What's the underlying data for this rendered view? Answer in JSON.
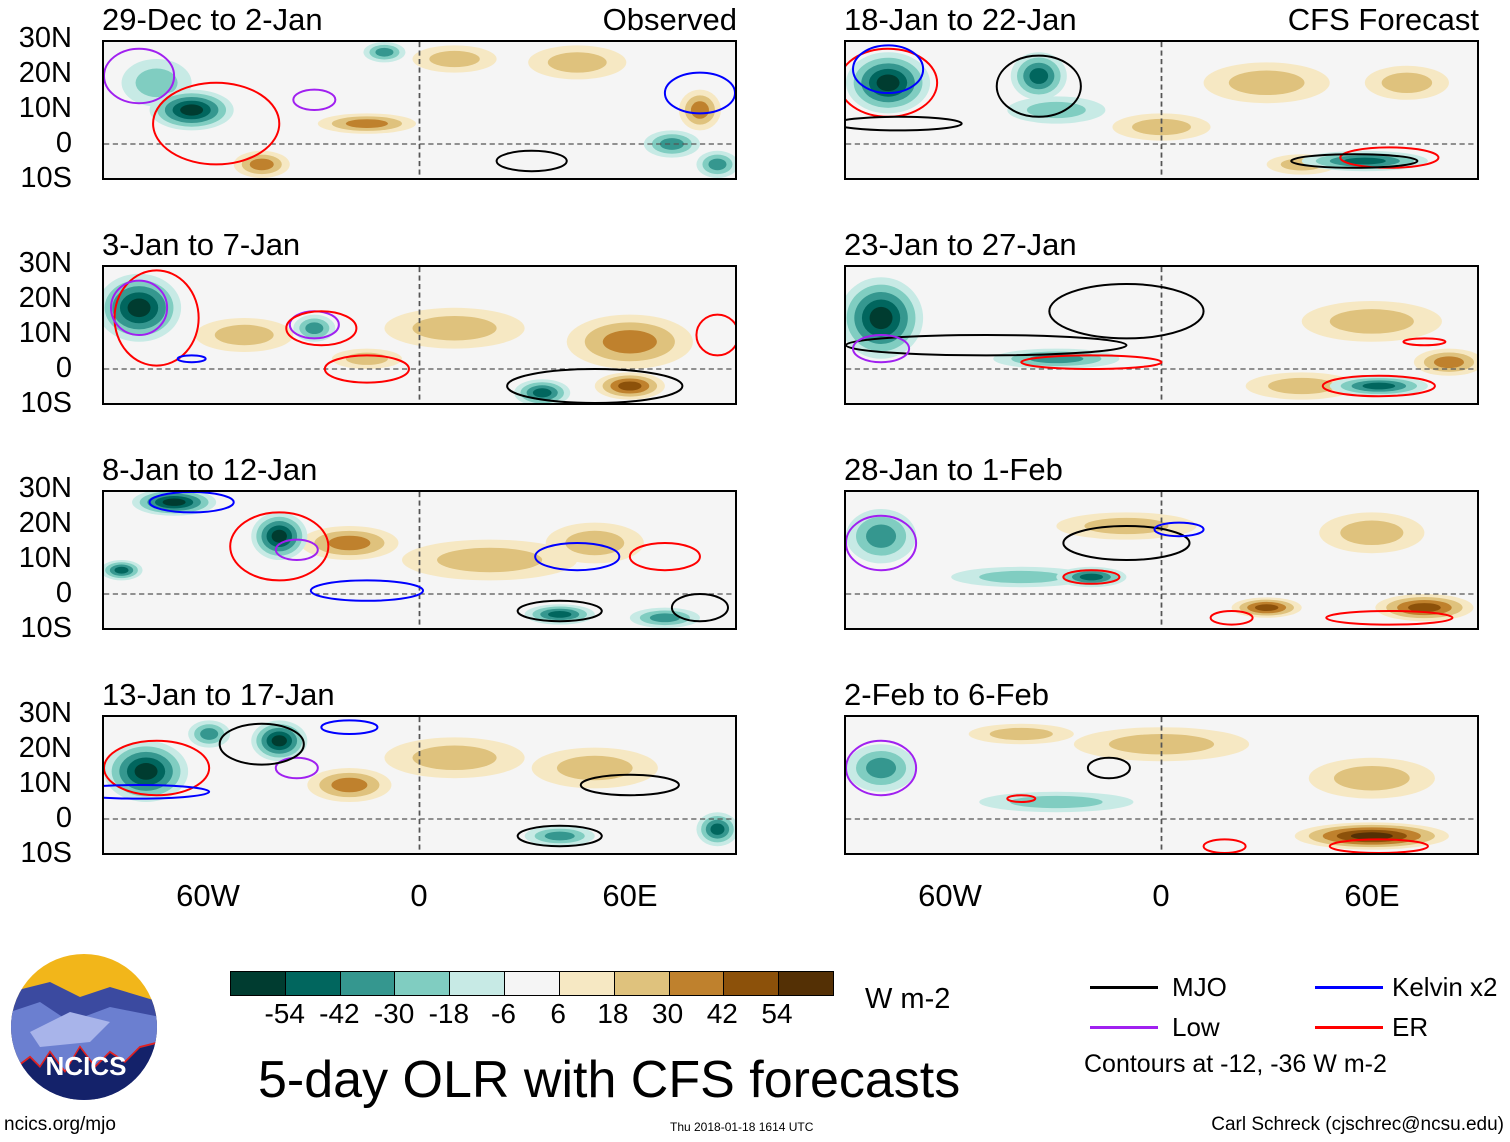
{
  "header": {
    "left_label": "Observed",
    "right_label": "CFS Forecast"
  },
  "colors": {
    "bins": [
      "#003c30",
      "#01665e",
      "#35978f",
      "#80cdc1",
      "#c7eae5",
      "#f5f5f5",
      "#f6e8c3",
      "#dfc27d",
      "#bf812d",
      "#8c510a",
      "#543005"
    ],
    "MJO": "#000000",
    "Kelvin": "#0000ff",
    "Low": "#a020f0",
    "ER": "#ff0000"
  },
  "axes": {
    "lat_labels": [
      "30N",
      "20N",
      "10N",
      "0",
      "10S"
    ],
    "lon_labels": [
      "60W",
      "0",
      "60E"
    ]
  },
  "colorbar": {
    "labels": [
      "-54",
      "-42",
      "-30",
      "-18",
      "-6",
      "6",
      "18",
      "30",
      "42",
      "54"
    ],
    "units": "W m-2"
  },
  "legend": {
    "mjo": "MJO",
    "kelvin": "Kelvin x2",
    "low": "Low",
    "er": "ER",
    "note": "Contours at -12, -36 W m-2"
  },
  "footer": {
    "title": "5-day OLR with CFS forecasts",
    "url": "ncics.org/mjo",
    "timestamp": "Thu 2018-01-18 1614 UTC",
    "credit": "Carl Schreck (cjschrec@ncsu.edu)",
    "logo_text": "NCICS"
  },
  "chart_data": {
    "type": "heatmap",
    "variable": "OLR anomaly",
    "units": "W m-2",
    "lon_range": [
      -90,
      90
    ],
    "lat_range": [
      -10,
      30
    ],
    "panels": [
      {
        "title": "29-Dec to 2-Jan",
        "kind": "Observed",
        "shading": [
          [
            -65,
            10,
            12,
            6,
            -54
          ],
          [
            -75,
            18,
            10,
            7,
            -18
          ],
          [
            -10,
            27,
            6,
            3,
            -30
          ],
          [
            -45,
            -6,
            8,
            4,
            30
          ],
          [
            -15,
            6,
            14,
            3,
            30
          ],
          [
            10,
            25,
            12,
            4,
            18
          ],
          [
            45,
            24,
            14,
            5,
            18
          ],
          [
            80,
            10,
            6,
            6,
            30
          ],
          [
            72,
            0,
            8,
            4,
            -30
          ],
          [
            85,
            -6,
            6,
            4,
            -30
          ]
        ],
        "contours": [
          [
            "ER",
            -58,
            6,
            18,
            12
          ],
          [
            "Low",
            -80,
            20,
            10,
            8
          ],
          [
            "Low",
            -30,
            13,
            6,
            3
          ],
          [
            "Kelvin",
            80,
            15,
            10,
            6
          ],
          [
            "MJO",
            32,
            -5,
            10,
            3
          ]
        ]
      },
      {
        "title": "18-Jan to 22-Jan",
        "kind": "CFS Forecast",
        "shading": [
          [
            -78,
            18,
            12,
            9,
            -54
          ],
          [
            -35,
            20,
            8,
            7,
            -42
          ],
          [
            -30,
            10,
            14,
            4,
            -18
          ],
          [
            0,
            5,
            14,
            4,
            18
          ],
          [
            30,
            18,
            18,
            6,
            18
          ],
          [
            70,
            18,
            12,
            5,
            18
          ],
          [
            58,
            -5,
            18,
            3,
            -42
          ],
          [
            40,
            -6,
            10,
            3,
            18
          ]
        ],
        "contours": [
          [
            "ER",
            -78,
            18,
            14,
            10
          ],
          [
            "MJO",
            -35,
            17,
            12,
            9
          ],
          [
            "MJO",
            -75,
            6,
            18,
            2
          ],
          [
            "Kelvin",
            -78,
            22,
            10,
            7
          ],
          [
            "ER",
            65,
            -4,
            14,
            3
          ],
          [
            "MJO",
            55,
            -5,
            18,
            2
          ]
        ]
      },
      {
        "title": "3-Jan to 7-Jan",
        "kind": "Observed",
        "shading": [
          [
            -80,
            18,
            12,
            10,
            -54
          ],
          [
            -30,
            12,
            6,
            4,
            -30
          ],
          [
            -50,
            10,
            14,
            5,
            18
          ],
          [
            10,
            12,
            20,
            6,
            18
          ],
          [
            60,
            8,
            18,
            8,
            30
          ],
          [
            60,
            -5,
            10,
            4,
            42
          ],
          [
            35,
            -7,
            8,
            4,
            -42
          ],
          [
            -15,
            3,
            10,
            3,
            18
          ]
        ],
        "contours": [
          [
            "ER",
            -75,
            15,
            12,
            14
          ],
          [
            "Low",
            -80,
            18,
            8,
            8
          ],
          [
            "Low",
            -30,
            13,
            7,
            4
          ],
          [
            "ER",
            -28,
            12,
            10,
            5
          ],
          [
            "ER",
            -15,
            0,
            12,
            4
          ],
          [
            "MJO",
            50,
            -5,
            25,
            5
          ],
          [
            "ER",
            85,
            10,
            6,
            6
          ],
          [
            "Kelvin",
            -65,
            3,
            4,
            1
          ]
        ]
      },
      {
        "title": "23-Jan to 27-Jan",
        "kind": "CFS Forecast",
        "shading": [
          [
            -80,
            15,
            12,
            12,
            -54
          ],
          [
            -30,
            3,
            18,
            3,
            -30
          ],
          [
            5,
            22,
            20,
            5,
            0
          ],
          [
            60,
            14,
            20,
            6,
            18
          ],
          [
            82,
            2,
            10,
            4,
            30
          ],
          [
            62,
            -5,
            14,
            3,
            -42
          ],
          [
            40,
            -5,
            16,
            4,
            18
          ]
        ],
        "contours": [
          [
            "MJO",
            -50,
            7,
            40,
            3
          ],
          [
            "MJO",
            -10,
            17,
            22,
            8
          ],
          [
            "ER",
            -20,
            2,
            20,
            2
          ],
          [
            "ER",
            62,
            -5,
            16,
            3
          ],
          [
            "Low",
            -80,
            6,
            8,
            4
          ],
          [
            "ER",
            75,
            8,
            6,
            1
          ]
        ]
      },
      {
        "title": "8-Jan to 12-Jan",
        "kind": "Observed",
        "shading": [
          [
            -70,
            27,
            12,
            4,
            -54
          ],
          [
            -40,
            17,
            8,
            7,
            -54
          ],
          [
            -85,
            7,
            6,
            3,
            -42
          ],
          [
            -20,
            15,
            14,
            5,
            30
          ],
          [
            20,
            10,
            25,
            6,
            18
          ],
          [
            50,
            15,
            14,
            6,
            18
          ],
          [
            40,
            -6,
            10,
            3,
            -42
          ],
          [
            70,
            -7,
            10,
            3,
            -30
          ]
        ],
        "contours": [
          [
            "ER",
            -40,
            14,
            14,
            10
          ],
          [
            "Kelvin",
            -15,
            1,
            16,
            3
          ],
          [
            "Low",
            -35,
            13,
            6,
            3
          ],
          [
            "Kelvin",
            -65,
            27,
            12,
            3
          ],
          [
            "MJO",
            40,
            -5,
            12,
            3
          ],
          [
            "Kelvin",
            45,
            11,
            12,
            4
          ],
          [
            "ER",
            70,
            11,
            10,
            4
          ],
          [
            "MJO",
            80,
            -4,
            8,
            4
          ]
        ]
      },
      {
        "title": "28-Jan to 1-Feb",
        "kind": "CFS Forecast",
        "shading": [
          [
            -80,
            17,
            10,
            8,
            -30
          ],
          [
            -20,
            5,
            10,
            3,
            -42
          ],
          [
            -10,
            20,
            20,
            4,
            18
          ],
          [
            60,
            18,
            15,
            6,
            18
          ],
          [
            75,
            -4,
            14,
            4,
            42
          ],
          [
            30,
            -4,
            10,
            3,
            42
          ],
          [
            -40,
            5,
            20,
            3,
            -18
          ]
        ],
        "contours": [
          [
            "MJO",
            -10,
            15,
            18,
            5
          ],
          [
            "ER",
            -20,
            5,
            8,
            2
          ],
          [
            "Kelvin",
            5,
            19,
            7,
            2
          ],
          [
            "Low",
            -80,
            15,
            10,
            8
          ],
          [
            "ER",
            65,
            -7,
            18,
            2
          ],
          [
            "ER",
            20,
            -7,
            6,
            2
          ]
        ]
      },
      {
        "title": "13-Jan to 17-Jan",
        "kind": "Observed",
        "shading": [
          [
            -78,
            14,
            12,
            9,
            -54
          ],
          [
            -40,
            23,
            8,
            6,
            -54
          ],
          [
            -60,
            25,
            6,
            4,
            -30
          ],
          [
            -20,
            10,
            12,
            5,
            30
          ],
          [
            10,
            18,
            20,
            6,
            18
          ],
          [
            50,
            15,
            18,
            6,
            18
          ],
          [
            40,
            -5,
            10,
            3,
            -30
          ],
          [
            85,
            -3,
            6,
            5,
            -42
          ]
        ],
        "contours": [
          [
            "ER",
            -75,
            15,
            15,
            8
          ],
          [
            "Kelvin",
            -80,
            8,
            20,
            2
          ],
          [
            "Low",
            -35,
            15,
            6,
            3
          ],
          [
            "MJO",
            -45,
            22,
            12,
            6
          ],
          [
            "Kelvin",
            -20,
            27,
            8,
            2
          ],
          [
            "MJO",
            60,
            10,
            14,
            3
          ],
          [
            "MJO",
            40,
            -5,
            12,
            3
          ]
        ]
      },
      {
        "title": "2-Feb to 6-Feb",
        "kind": "CFS Forecast",
        "shading": [
          [
            -80,
            15,
            10,
            7,
            -30
          ],
          [
            -30,
            5,
            22,
            3,
            -18
          ],
          [
            0,
            22,
            25,
            5,
            18
          ],
          [
            60,
            -5,
            22,
            4,
            54
          ],
          [
            60,
            12,
            18,
            6,
            18
          ],
          [
            -40,
            25,
            15,
            3,
            18
          ]
        ],
        "contours": [
          [
            "Low",
            -80,
            15,
            10,
            8
          ],
          [
            "MJO",
            -15,
            15,
            6,
            3
          ],
          [
            "ER",
            -40,
            6,
            4,
            1
          ],
          [
            "ER",
            18,
            -8,
            6,
            2
          ],
          [
            "ER",
            62,
            -8,
            14,
            2
          ]
        ]
      }
    ]
  }
}
